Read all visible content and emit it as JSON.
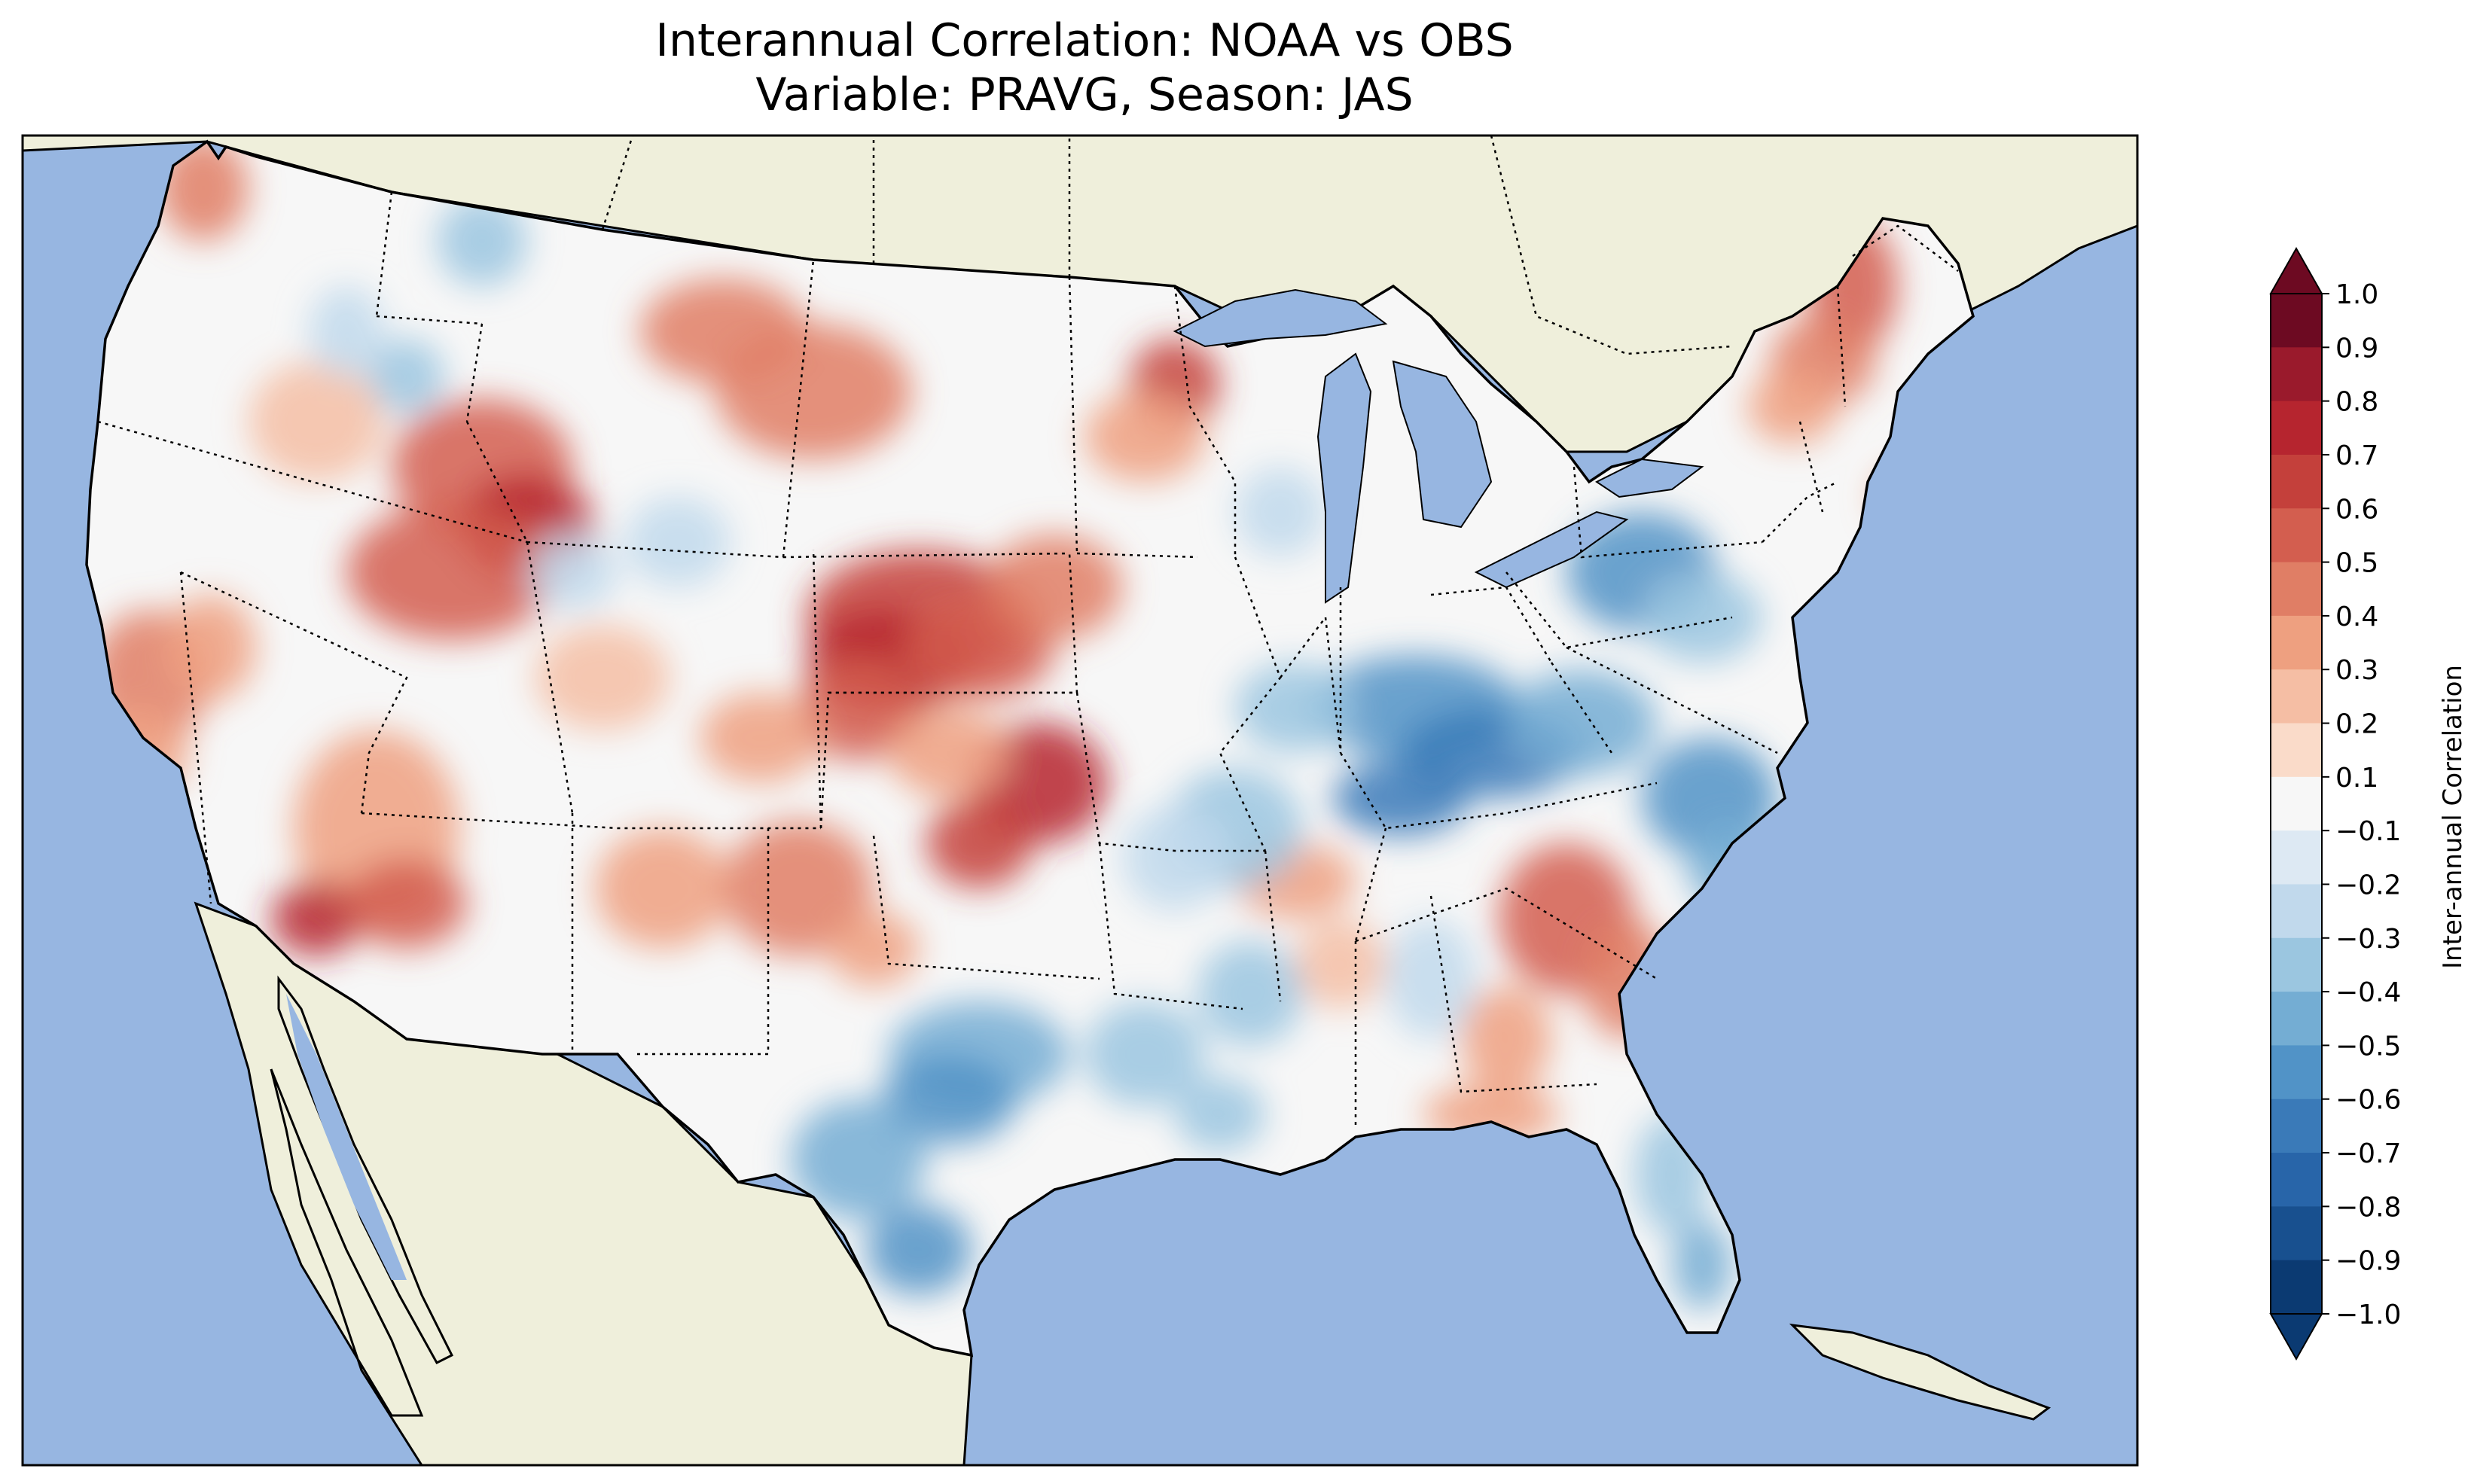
{
  "title": {
    "line1": "Interannual Correlation: NOAA vs OBS",
    "line2": "Variable: PRAVG, Season: JAS"
  },
  "map": {
    "colors": {
      "ocean": "#97b6e1",
      "land": "#efefdb",
      "lake": "#97b6e1",
      "coastline": "#000000",
      "border": "#000000"
    }
  },
  "colorbar": {
    "label": "Inter-annual Correlation",
    "ticks": [
      "1.0",
      "0.9",
      "0.8",
      "0.7",
      "0.6",
      "0.5",
      "0.4",
      "0.3",
      "0.2",
      "0.1",
      "−0.1",
      "−0.2",
      "−0.3",
      "−0.4",
      "−0.5",
      "−0.6",
      "−0.7",
      "−0.8",
      "−0.9",
      "−1.0"
    ],
    "colors": [
      "#6d0a22",
      "#9a1a2c",
      "#b6252f",
      "#c4403b",
      "#d35e4f",
      "#e07e65",
      "#eea080",
      "#f5bea4",
      "#fadbc9",
      "#f7f7f7",
      "#dde9f3",
      "#c1d9ec",
      "#9bc6e0",
      "#74add3",
      "#5193c7",
      "#3a7ab8",
      "#2865a9",
      "#18508f",
      "#0b3a72"
    ],
    "extend_colors": {
      "over": "#6d0a22",
      "under": "#0b3a72"
    }
  }
}
